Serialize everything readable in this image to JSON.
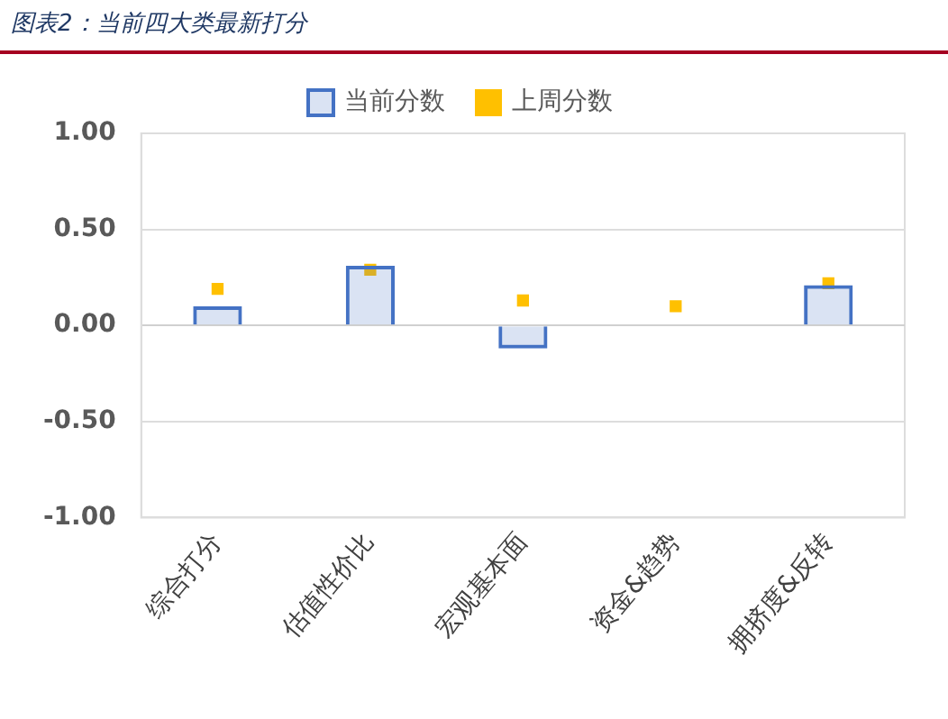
{
  "chart_data": {
    "type": "bar",
    "title": "图表2：当前四大类最新打分",
    "categories": [
      "综合打分",
      "估值性价比",
      "宏观基本面",
      "资金&趋势",
      "拥挤度&反转"
    ],
    "series": [
      {
        "name": "当前分数",
        "color": "#4472c4",
        "values": [
          0.1,
          0.31,
          -0.12,
          0,
          0.21
        ]
      },
      {
        "name": "上周分数",
        "type": "scatter",
        "color": "#ffc000",
        "marker": "square",
        "values": [
          0.19,
          0.29,
          0.13,
          0.1,
          0.22
        ]
      }
    ],
    "ylim": [
      -1,
      1
    ],
    "yticks": [
      {
        "value": -1,
        "label": "-1.00"
      },
      {
        "value": -0.5,
        "label": "-0.50"
      },
      {
        "value": 0,
        "label": "0.00"
      },
      {
        "value": 0.5,
        "label": "0.50"
      },
      {
        "value": 1,
        "label": "1.00"
      }
    ],
    "grid": "y",
    "legend": "top"
  }
}
